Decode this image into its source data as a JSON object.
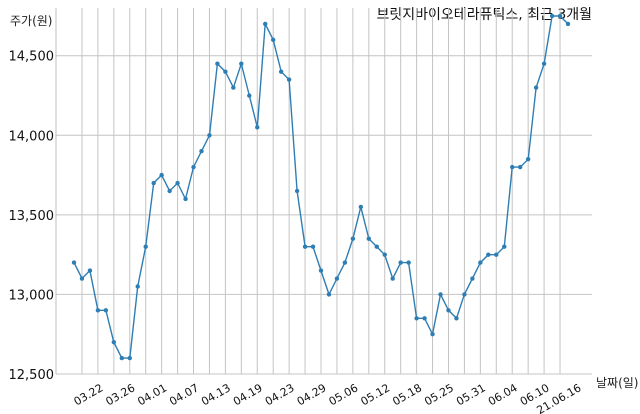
{
  "chart_data": {
    "type": "line",
    "title": "브릿지바이오테라퓨틱스, 최근 3개월",
    "ylabel": "주가(원)",
    "xlabel": "날짜(일)",
    "ylim": [
      12500,
      14800
    ],
    "yticks": [
      12500,
      13000,
      13500,
      14000,
      14500
    ],
    "ytick_labels": [
      "12,500",
      "13,000",
      "13,500",
      "14,000",
      "14,500"
    ],
    "xtick_labels": [
      "03.22",
      "03.26",
      "04.01",
      "04.07",
      "04.13",
      "04.19",
      "04.23",
      "04.29",
      "05.06",
      "05.12",
      "05.18",
      "05.25",
      "05.31",
      "06.04",
      "06.10",
      "21.06.16"
    ],
    "grid": true,
    "color": "#2e7eb4",
    "series": [
      {
        "values": [
          13200,
          13100,
          13150,
          12900,
          12900,
          12700,
          12600,
          12600,
          13050,
          13300,
          13700,
          13750,
          13650,
          13700,
          13600,
          13800,
          13900,
          14000,
          14450,
          14400,
          14300,
          14450,
          14250,
          14050,
          14700,
          14600,
          14400,
          14350,
          13650,
          13300,
          13300,
          13150,
          13000,
          13100,
          13200,
          13350,
          13550,
          13350,
          13300,
          13250,
          13100,
          13200,
          13200,
          12850,
          12850,
          12750,
          13000,
          12900,
          12850,
          13000,
          13100,
          13200,
          13250,
          13250,
          13300,
          13800,
          13800,
          13850,
          14300,
          14450,
          14750,
          14750,
          14700
        ]
      }
    ]
  }
}
